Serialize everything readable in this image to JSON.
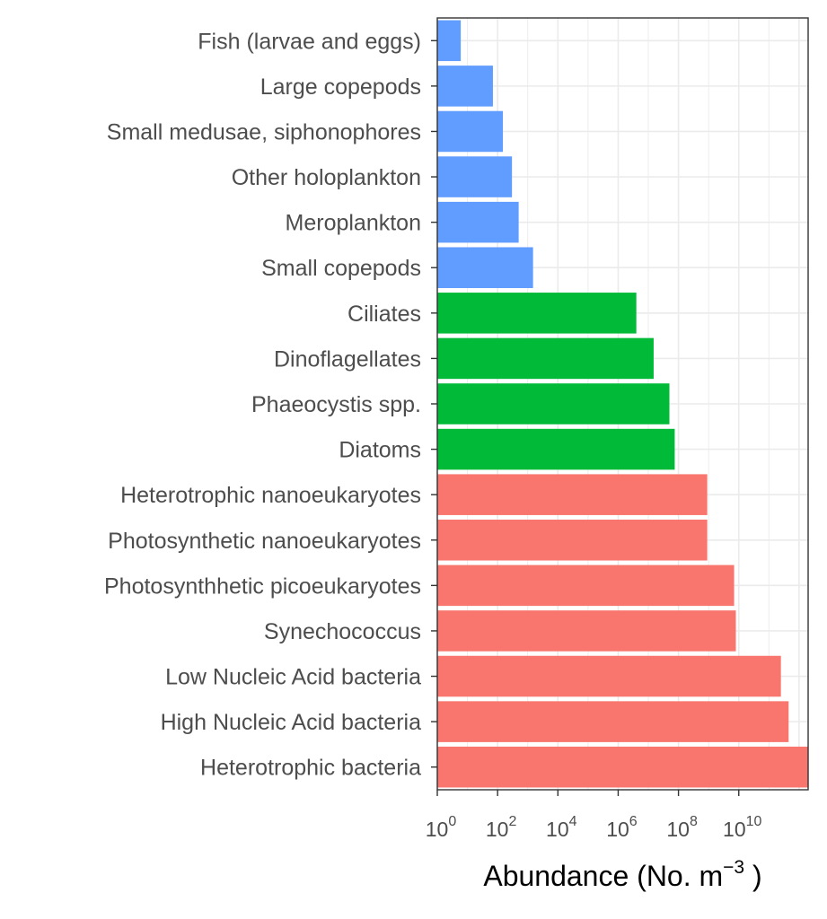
{
  "chart_data": {
    "type": "bar",
    "orientation": "horizontal",
    "x_scale": "log10",
    "xlim": [
      1,
      2000000000000
    ],
    "title": "",
    "xlabel": {
      "text": "Abundance (No. m",
      "superscript": "−3",
      "suffix": " )"
    },
    "ylabel": "",
    "x_ticks": [
      {
        "base": "10",
        "exp": "0",
        "value": 1
      },
      {
        "base": "10",
        "exp": "2",
        "value": 100
      },
      {
        "base": "10",
        "exp": "4",
        "value": 10000
      },
      {
        "base": "10",
        "exp": "6",
        "value": 1000000
      },
      {
        "base": "10",
        "exp": "8",
        "value": 100000000
      },
      {
        "base": "10",
        "exp": "10",
        "value": 10000000000
      }
    ],
    "grid": true,
    "legend": "none",
    "colors": {
      "zooplankton": "#619CFF",
      "protists": "#00BA38",
      "microbes": "#F8766D",
      "grid": "#ebebeb",
      "panel_border": "#333333"
    },
    "categories": [
      "Fish (larvae and eggs)",
      "Large copepods",
      "Small medusae, siphonophores",
      "Other holoplankton",
      "Meroplankton",
      "Small copepods",
      "Ciliates",
      "Dinoflagellates",
      "Phaeocystis spp.",
      "Diatoms",
      "Heterotrophic nanoeukaryotes",
      "Photosynthetic nanoeukaryotes",
      "Photosynthhetic picoeukaryotes",
      "Synechococcus",
      "Low Nucleic Acid bacteria",
      "High Nucleic Acid bacteria",
      "Heterotrophic bacteria"
    ],
    "values": [
      6,
      70,
      150,
      300,
      500,
      1500,
      4000000,
      15000000,
      50000000,
      75000000,
      900000000,
      900000000,
      7000000000,
      8000000000,
      250000000000,
      450000000000,
      2000000000000
    ],
    "groups": [
      "zooplankton",
      "zooplankton",
      "zooplankton",
      "zooplankton",
      "zooplankton",
      "zooplankton",
      "protists",
      "protists",
      "protists",
      "protists",
      "microbes",
      "microbes",
      "microbes",
      "microbes",
      "microbes",
      "microbes",
      "microbes"
    ]
  }
}
